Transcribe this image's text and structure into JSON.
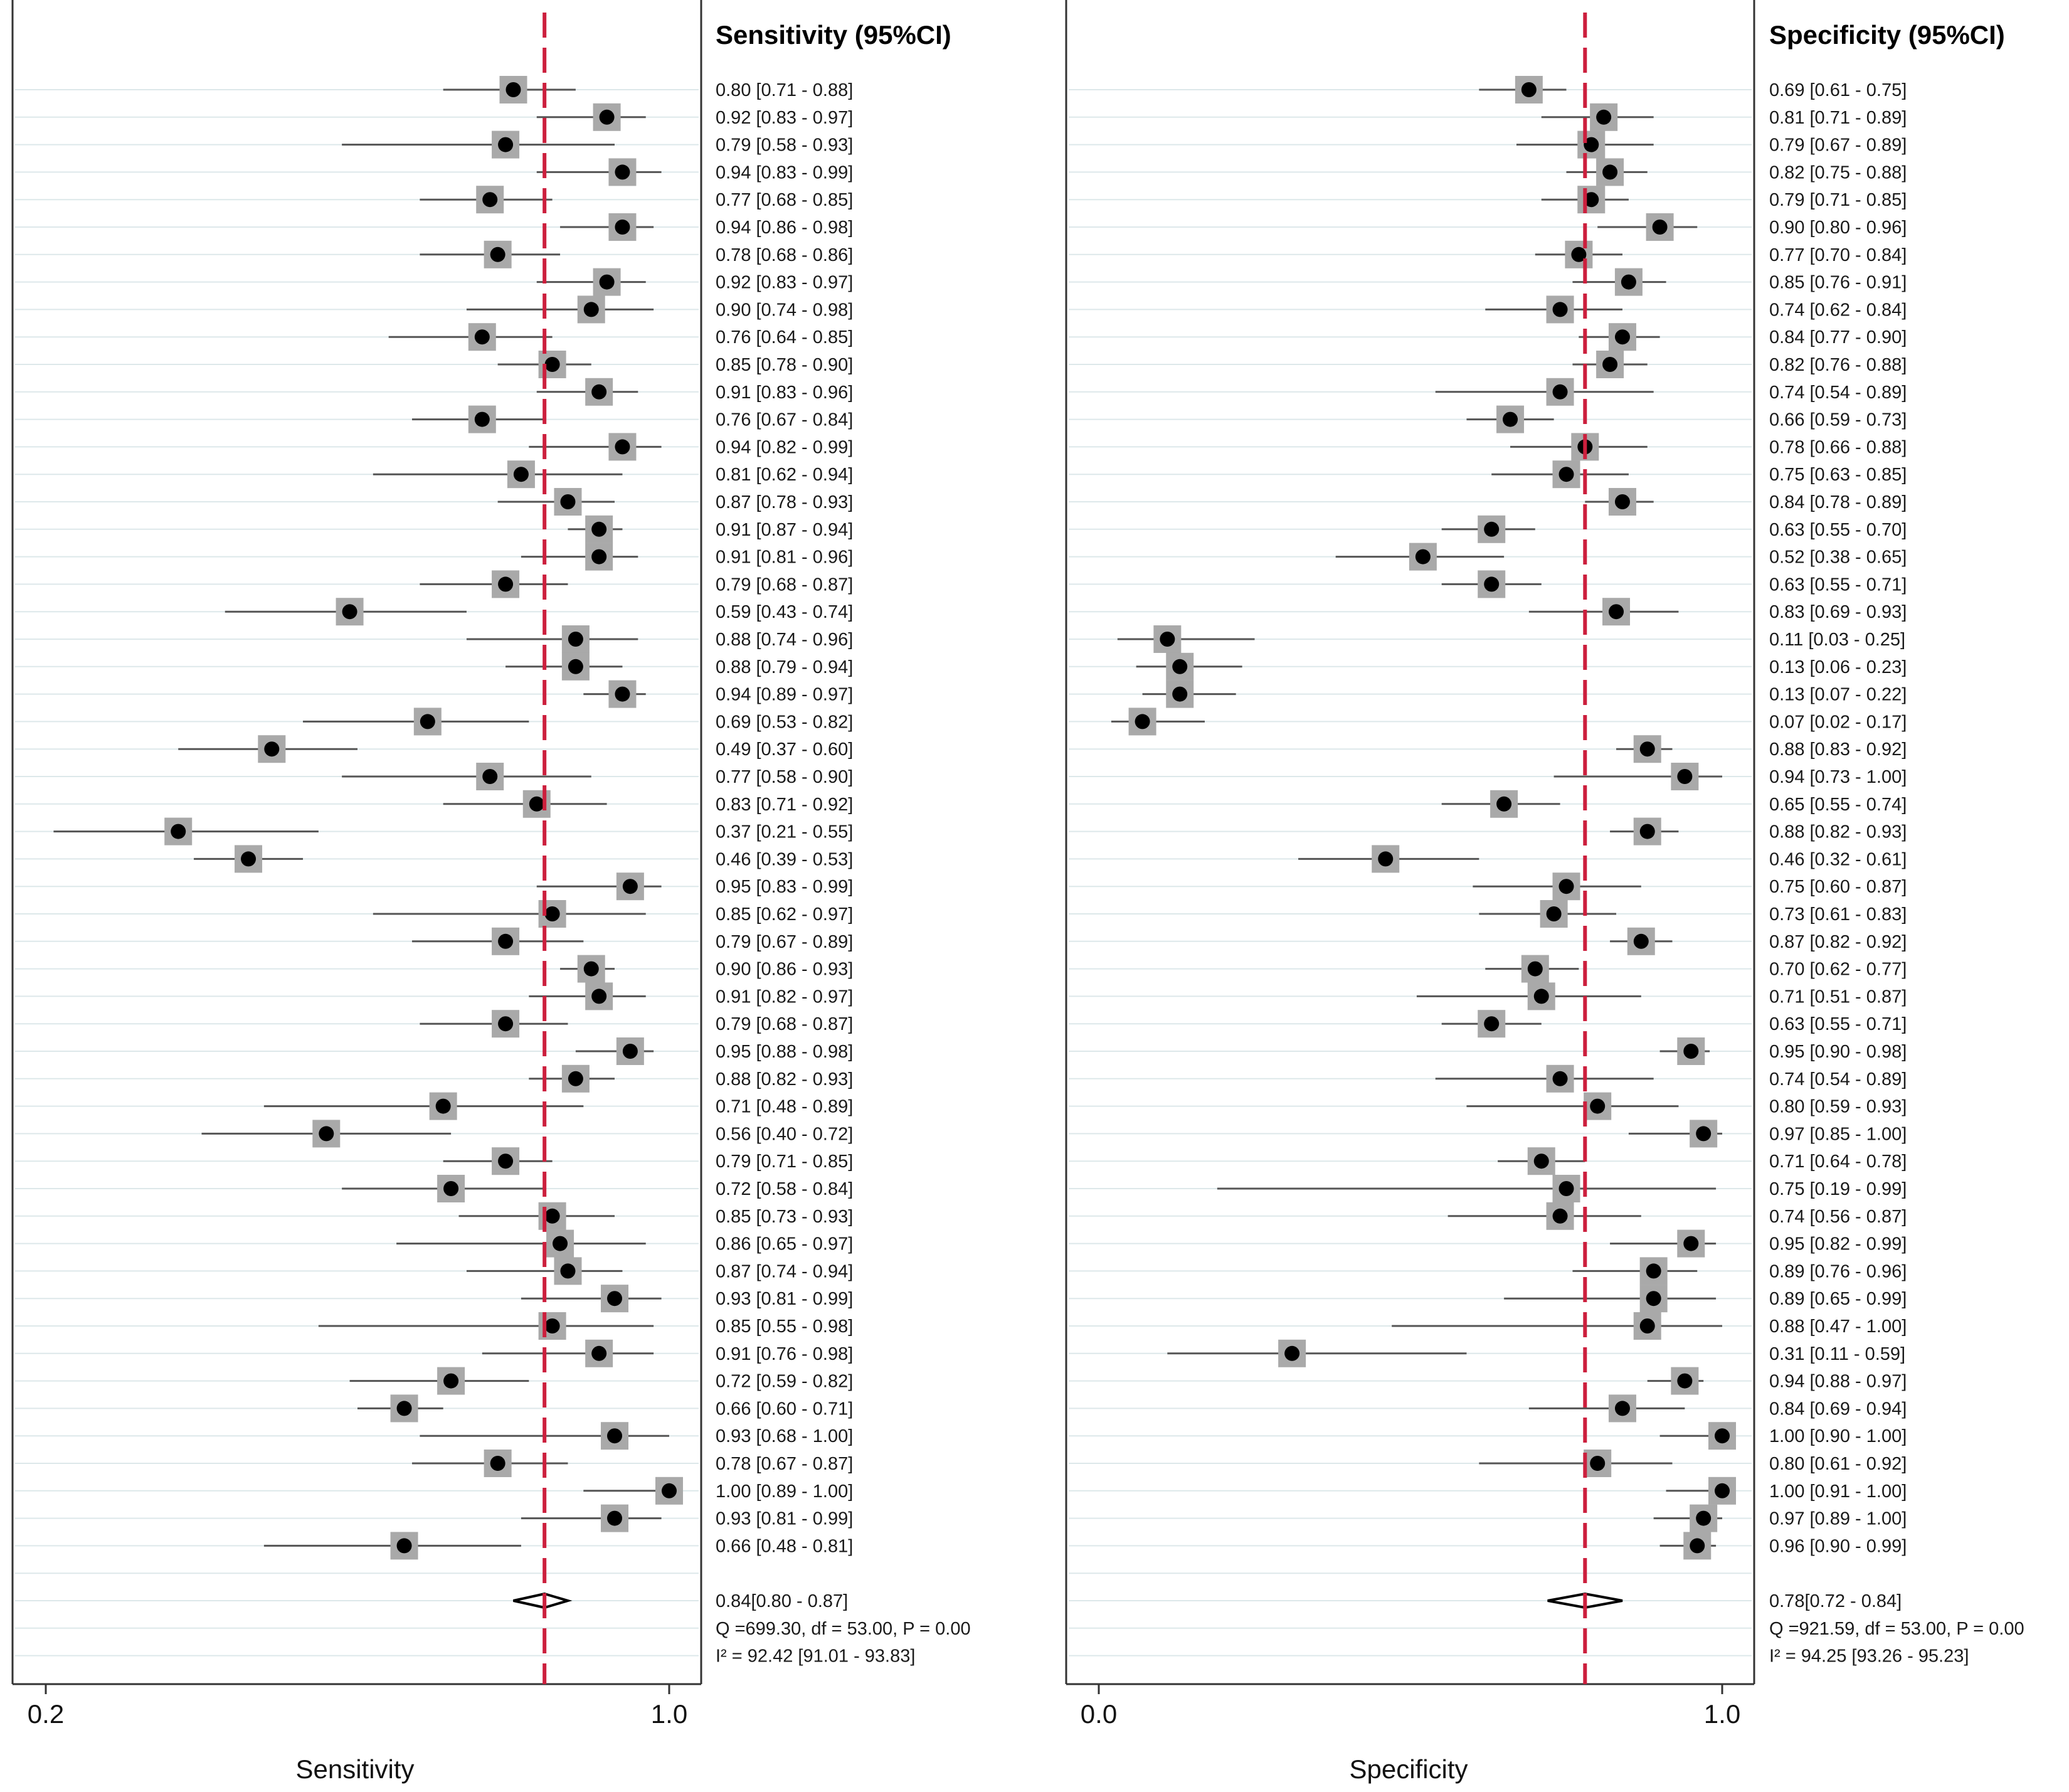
{
  "chart_data": [
    {
      "type": "forest",
      "panel": "sensitivity",
      "column_title": "Sensitivity (95%CI)",
      "xlabel": "Sensitivity",
      "xlim": [
        0.2,
        1.0
      ],
      "xticks": [
        "0.2",
        "1.0"
      ],
      "reference_line": 0.84,
      "studies": [
        {
          "est": 0.8,
          "lo": 0.71,
          "hi": 0.88,
          "label": "0.80 [0.71 - 0.88]"
        },
        {
          "est": 0.92,
          "lo": 0.83,
          "hi": 0.97,
          "label": "0.92 [0.83 - 0.97]"
        },
        {
          "est": 0.79,
          "lo": 0.58,
          "hi": 0.93,
          "label": "0.79 [0.58 - 0.93]"
        },
        {
          "est": 0.94,
          "lo": 0.83,
          "hi": 0.99,
          "label": "0.94 [0.83 - 0.99]"
        },
        {
          "est": 0.77,
          "lo": 0.68,
          "hi": 0.85,
          "label": "0.77 [0.68 - 0.85]"
        },
        {
          "est": 0.94,
          "lo": 0.86,
          "hi": 0.98,
          "label": "0.94 [0.86 - 0.98]"
        },
        {
          "est": 0.78,
          "lo": 0.68,
          "hi": 0.86,
          "label": "0.78 [0.68 - 0.86]"
        },
        {
          "est": 0.92,
          "lo": 0.83,
          "hi": 0.97,
          "label": "0.92 [0.83 - 0.97]"
        },
        {
          "est": 0.9,
          "lo": 0.74,
          "hi": 0.98,
          "label": "0.90 [0.74 - 0.98]"
        },
        {
          "est": 0.76,
          "lo": 0.64,
          "hi": 0.85,
          "label": "0.76 [0.64 - 0.85]"
        },
        {
          "est": 0.85,
          "lo": 0.78,
          "hi": 0.9,
          "label": "0.85 [0.78 - 0.90]"
        },
        {
          "est": 0.91,
          "lo": 0.83,
          "hi": 0.96,
          "label": "0.91 [0.83 - 0.96]"
        },
        {
          "est": 0.76,
          "lo": 0.67,
          "hi": 0.84,
          "label": "0.76 [0.67 - 0.84]"
        },
        {
          "est": 0.94,
          "lo": 0.82,
          "hi": 0.99,
          "label": "0.94 [0.82 - 0.99]"
        },
        {
          "est": 0.81,
          "lo": 0.62,
          "hi": 0.94,
          "label": "0.81 [0.62 - 0.94]"
        },
        {
          "est": 0.87,
          "lo": 0.78,
          "hi": 0.93,
          "label": "0.87 [0.78 - 0.93]"
        },
        {
          "est": 0.91,
          "lo": 0.87,
          "hi": 0.94,
          "label": "0.91 [0.87 - 0.94]"
        },
        {
          "est": 0.91,
          "lo": 0.81,
          "hi": 0.96,
          "label": "0.91 [0.81 - 0.96]"
        },
        {
          "est": 0.79,
          "lo": 0.68,
          "hi": 0.87,
          "label": "0.79 [0.68 - 0.87]"
        },
        {
          "est": 0.59,
          "lo": 0.43,
          "hi": 0.74,
          "label": "0.59 [0.43 - 0.74]"
        },
        {
          "est": 0.88,
          "lo": 0.74,
          "hi": 0.96,
          "label": "0.88 [0.74 - 0.96]"
        },
        {
          "est": 0.88,
          "lo": 0.79,
          "hi": 0.94,
          "label": "0.88 [0.79 - 0.94]"
        },
        {
          "est": 0.94,
          "lo": 0.89,
          "hi": 0.97,
          "label": "0.94 [0.89 - 0.97]"
        },
        {
          "est": 0.69,
          "lo": 0.53,
          "hi": 0.82,
          "label": "0.69 [0.53 - 0.82]"
        },
        {
          "est": 0.49,
          "lo": 0.37,
          "hi": 0.6,
          "label": "0.49 [0.37 - 0.60]"
        },
        {
          "est": 0.77,
          "lo": 0.58,
          "hi": 0.9,
          "label": "0.77 [0.58 - 0.90]"
        },
        {
          "est": 0.83,
          "lo": 0.71,
          "hi": 0.92,
          "label": "0.83 [0.71 - 0.92]"
        },
        {
          "est": 0.37,
          "lo": 0.21,
          "hi": 0.55,
          "label": "0.37 [0.21 - 0.55]"
        },
        {
          "est": 0.46,
          "lo": 0.39,
          "hi": 0.53,
          "label": "0.46 [0.39 - 0.53]"
        },
        {
          "est": 0.95,
          "lo": 0.83,
          "hi": 0.99,
          "label": "0.95 [0.83 - 0.99]"
        },
        {
          "est": 0.85,
          "lo": 0.62,
          "hi": 0.97,
          "label": "0.85 [0.62 - 0.97]"
        },
        {
          "est": 0.79,
          "lo": 0.67,
          "hi": 0.89,
          "label": "0.79 [0.67 - 0.89]"
        },
        {
          "est": 0.9,
          "lo": 0.86,
          "hi": 0.93,
          "label": "0.90 [0.86 - 0.93]"
        },
        {
          "est": 0.91,
          "lo": 0.82,
          "hi": 0.97,
          "label": "0.91 [0.82 - 0.97]"
        },
        {
          "est": 0.79,
          "lo": 0.68,
          "hi": 0.87,
          "label": "0.79 [0.68 - 0.87]"
        },
        {
          "est": 0.95,
          "lo": 0.88,
          "hi": 0.98,
          "label": "0.95 [0.88 - 0.98]"
        },
        {
          "est": 0.88,
          "lo": 0.82,
          "hi": 0.93,
          "label": "0.88 [0.82 - 0.93]"
        },
        {
          "est": 0.71,
          "lo": 0.48,
          "hi": 0.89,
          "label": "0.71 [0.48 - 0.89]"
        },
        {
          "est": 0.56,
          "lo": 0.4,
          "hi": 0.72,
          "label": "0.56 [0.40 - 0.72]"
        },
        {
          "est": 0.79,
          "lo": 0.71,
          "hi": 0.85,
          "label": "0.79 [0.71 - 0.85]"
        },
        {
          "est": 0.72,
          "lo": 0.58,
          "hi": 0.84,
          "label": "0.72 [0.58 - 0.84]"
        },
        {
          "est": 0.85,
          "lo": 0.73,
          "hi": 0.93,
          "label": "0.85 [0.73 - 0.93]"
        },
        {
          "est": 0.86,
          "lo": 0.65,
          "hi": 0.97,
          "label": "0.86 [0.65 - 0.97]"
        },
        {
          "est": 0.87,
          "lo": 0.74,
          "hi": 0.94,
          "label": "0.87 [0.74 - 0.94]"
        },
        {
          "est": 0.93,
          "lo": 0.81,
          "hi": 0.99,
          "label": "0.93 [0.81 - 0.99]"
        },
        {
          "est": 0.85,
          "lo": 0.55,
          "hi": 0.98,
          "label": "0.85 [0.55 - 0.98]"
        },
        {
          "est": 0.91,
          "lo": 0.76,
          "hi": 0.98,
          "label": "0.91 [0.76 - 0.98]"
        },
        {
          "est": 0.72,
          "lo": 0.59,
          "hi": 0.82,
          "label": "0.72 [0.59 - 0.82]"
        },
        {
          "est": 0.66,
          "lo": 0.6,
          "hi": 0.71,
          "label": "0.66 [0.60 - 0.71]"
        },
        {
          "est": 0.93,
          "lo": 0.68,
          "hi": 1.0,
          "label": "0.93 [0.68 - 1.00]"
        },
        {
          "est": 0.78,
          "lo": 0.67,
          "hi": 0.87,
          "label": "0.78 [0.67 - 0.87]"
        },
        {
          "est": 1.0,
          "lo": 0.89,
          "hi": 1.0,
          "label": "1.00 [0.89 - 1.00]"
        },
        {
          "est": 0.93,
          "lo": 0.81,
          "hi": 0.99,
          "label": "0.93 [0.81 - 0.99]"
        },
        {
          "est": 0.66,
          "lo": 0.48,
          "hi": 0.81,
          "label": "0.66 [0.48 - 0.81]"
        }
      ],
      "summary": {
        "est": 0.84,
        "lo": 0.8,
        "hi": 0.87,
        "label": "0.84[0.80 - 0.87]"
      },
      "heterogeneity_q": "Q =699.30, df = 53.00, P =  0.00",
      "heterogeneity_i2": "I² = 92.42 [91.01 - 93.83]"
    },
    {
      "type": "forest",
      "panel": "specificity",
      "column_title": "Specificity (95%CI)",
      "xlabel": "Specificity",
      "xlim": [
        0.0,
        1.0
      ],
      "xticks": [
        "0.0",
        "1.0"
      ],
      "reference_line": 0.78,
      "studies": [
        {
          "est": 0.69,
          "lo": 0.61,
          "hi": 0.75,
          "label": "0.69 [0.61 - 0.75]"
        },
        {
          "est": 0.81,
          "lo": 0.71,
          "hi": 0.89,
          "label": "0.81 [0.71 - 0.89]"
        },
        {
          "est": 0.79,
          "lo": 0.67,
          "hi": 0.89,
          "label": "0.79 [0.67 - 0.89]"
        },
        {
          "est": 0.82,
          "lo": 0.75,
          "hi": 0.88,
          "label": "0.82 [0.75 - 0.88]"
        },
        {
          "est": 0.79,
          "lo": 0.71,
          "hi": 0.85,
          "label": "0.79 [0.71 - 0.85]"
        },
        {
          "est": 0.9,
          "lo": 0.8,
          "hi": 0.96,
          "label": "0.90 [0.80 - 0.96]"
        },
        {
          "est": 0.77,
          "lo": 0.7,
          "hi": 0.84,
          "label": "0.77 [0.70 - 0.84]"
        },
        {
          "est": 0.85,
          "lo": 0.76,
          "hi": 0.91,
          "label": "0.85 [0.76 - 0.91]"
        },
        {
          "est": 0.74,
          "lo": 0.62,
          "hi": 0.84,
          "label": "0.74 [0.62 - 0.84]"
        },
        {
          "est": 0.84,
          "lo": 0.77,
          "hi": 0.9,
          "label": "0.84 [0.77 - 0.90]"
        },
        {
          "est": 0.82,
          "lo": 0.76,
          "hi": 0.88,
          "label": "0.82 [0.76 - 0.88]"
        },
        {
          "est": 0.74,
          "lo": 0.54,
          "hi": 0.89,
          "label": "0.74 [0.54 - 0.89]"
        },
        {
          "est": 0.66,
          "lo": 0.59,
          "hi": 0.73,
          "label": "0.66 [0.59 - 0.73]"
        },
        {
          "est": 0.78,
          "lo": 0.66,
          "hi": 0.88,
          "label": "0.78 [0.66 - 0.88]"
        },
        {
          "est": 0.75,
          "lo": 0.63,
          "hi": 0.85,
          "label": "0.75 [0.63 - 0.85]"
        },
        {
          "est": 0.84,
          "lo": 0.78,
          "hi": 0.89,
          "label": "0.84 [0.78 - 0.89]"
        },
        {
          "est": 0.63,
          "lo": 0.55,
          "hi": 0.7,
          "label": "0.63 [0.55 - 0.70]"
        },
        {
          "est": 0.52,
          "lo": 0.38,
          "hi": 0.65,
          "label": "0.52 [0.38 - 0.65]"
        },
        {
          "est": 0.63,
          "lo": 0.55,
          "hi": 0.71,
          "label": "0.63 [0.55 - 0.71]"
        },
        {
          "est": 0.83,
          "lo": 0.69,
          "hi": 0.93,
          "label": "0.83 [0.69 - 0.93]"
        },
        {
          "est": 0.11,
          "lo": 0.03,
          "hi": 0.25,
          "label": "0.11 [0.03 - 0.25]"
        },
        {
          "est": 0.13,
          "lo": 0.06,
          "hi": 0.23,
          "label": "0.13 [0.06 - 0.23]"
        },
        {
          "est": 0.13,
          "lo": 0.07,
          "hi": 0.22,
          "label": "0.13 [0.07 - 0.22]"
        },
        {
          "est": 0.07,
          "lo": 0.02,
          "hi": 0.17,
          "label": "0.07 [0.02 - 0.17]"
        },
        {
          "est": 0.88,
          "lo": 0.83,
          "hi": 0.92,
          "label": "0.88 [0.83 - 0.92]"
        },
        {
          "est": 0.94,
          "lo": 0.73,
          "hi": 1.0,
          "label": "0.94 [0.73 - 1.00]"
        },
        {
          "est": 0.65,
          "lo": 0.55,
          "hi": 0.74,
          "label": "0.65 [0.55 - 0.74]"
        },
        {
          "est": 0.88,
          "lo": 0.82,
          "hi": 0.93,
          "label": "0.88 [0.82 - 0.93]"
        },
        {
          "est": 0.46,
          "lo": 0.32,
          "hi": 0.61,
          "label": "0.46 [0.32 - 0.61]"
        },
        {
          "est": 0.75,
          "lo": 0.6,
          "hi": 0.87,
          "label": "0.75 [0.60 - 0.87]"
        },
        {
          "est": 0.73,
          "lo": 0.61,
          "hi": 0.83,
          "label": "0.73 [0.61 - 0.83]"
        },
        {
          "est": 0.87,
          "lo": 0.82,
          "hi": 0.92,
          "label": "0.87 [0.82 - 0.92]"
        },
        {
          "est": 0.7,
          "lo": 0.62,
          "hi": 0.77,
          "label": "0.70 [0.62 - 0.77]"
        },
        {
          "est": 0.71,
          "lo": 0.51,
          "hi": 0.87,
          "label": "0.71 [0.51 - 0.87]"
        },
        {
          "est": 0.63,
          "lo": 0.55,
          "hi": 0.71,
          "label": "0.63 [0.55 - 0.71]"
        },
        {
          "est": 0.95,
          "lo": 0.9,
          "hi": 0.98,
          "label": "0.95 [0.90 - 0.98]"
        },
        {
          "est": 0.74,
          "lo": 0.54,
          "hi": 0.89,
          "label": "0.74 [0.54 - 0.89]"
        },
        {
          "est": 0.8,
          "lo": 0.59,
          "hi": 0.93,
          "label": "0.80 [0.59 - 0.93]"
        },
        {
          "est": 0.97,
          "lo": 0.85,
          "hi": 1.0,
          "label": "0.97 [0.85 - 1.00]"
        },
        {
          "est": 0.71,
          "lo": 0.64,
          "hi": 0.78,
          "label": "0.71 [0.64 - 0.78]"
        },
        {
          "est": 0.75,
          "lo": 0.19,
          "hi": 0.99,
          "label": "0.75 [0.19 - 0.99]"
        },
        {
          "est": 0.74,
          "lo": 0.56,
          "hi": 0.87,
          "label": "0.74 [0.56 - 0.87]"
        },
        {
          "est": 0.95,
          "lo": 0.82,
          "hi": 0.99,
          "label": "0.95 [0.82 - 0.99]"
        },
        {
          "est": 0.89,
          "lo": 0.76,
          "hi": 0.96,
          "label": "0.89 [0.76 - 0.96]"
        },
        {
          "est": 0.89,
          "lo": 0.65,
          "hi": 0.99,
          "label": "0.89 [0.65 - 0.99]"
        },
        {
          "est": 0.88,
          "lo": 0.47,
          "hi": 1.0,
          "label": "0.88 [0.47 - 1.00]"
        },
        {
          "est": 0.31,
          "lo": 0.11,
          "hi": 0.59,
          "label": "0.31 [0.11 - 0.59]"
        },
        {
          "est": 0.94,
          "lo": 0.88,
          "hi": 0.97,
          "label": "0.94 [0.88 - 0.97]"
        },
        {
          "est": 0.84,
          "lo": 0.69,
          "hi": 0.94,
          "label": "0.84 [0.69 - 0.94]"
        },
        {
          "est": 1.0,
          "lo": 0.9,
          "hi": 1.0,
          "label": "1.00 [0.90 - 1.00]"
        },
        {
          "est": 0.8,
          "lo": 0.61,
          "hi": 0.92,
          "label": "0.80 [0.61 - 0.92]"
        },
        {
          "est": 1.0,
          "lo": 0.91,
          "hi": 1.0,
          "label": "1.00 [0.91 - 1.00]"
        },
        {
          "est": 0.97,
          "lo": 0.89,
          "hi": 1.0,
          "label": "0.97 [0.89 - 1.00]"
        },
        {
          "est": 0.96,
          "lo": 0.9,
          "hi": 0.99,
          "label": "0.96 [0.90 - 0.99]"
        }
      ],
      "summary": {
        "est": 0.78,
        "lo": 0.72,
        "hi": 0.84,
        "label": "0.78[0.72 - 0.84]"
      },
      "heterogeneity_q": "Q =921.59, df = 53.00, P =  0.00",
      "heterogeneity_i2": "I² = 94.25 [93.26 - 95.23]"
    }
  ],
  "colors": {
    "reference_line": "#cc1f3d",
    "point": "#000000",
    "weight_box": "#a9a9a9",
    "ci_line": "#555555",
    "row_band": "#dde8ea",
    "axis": "#333333"
  }
}
